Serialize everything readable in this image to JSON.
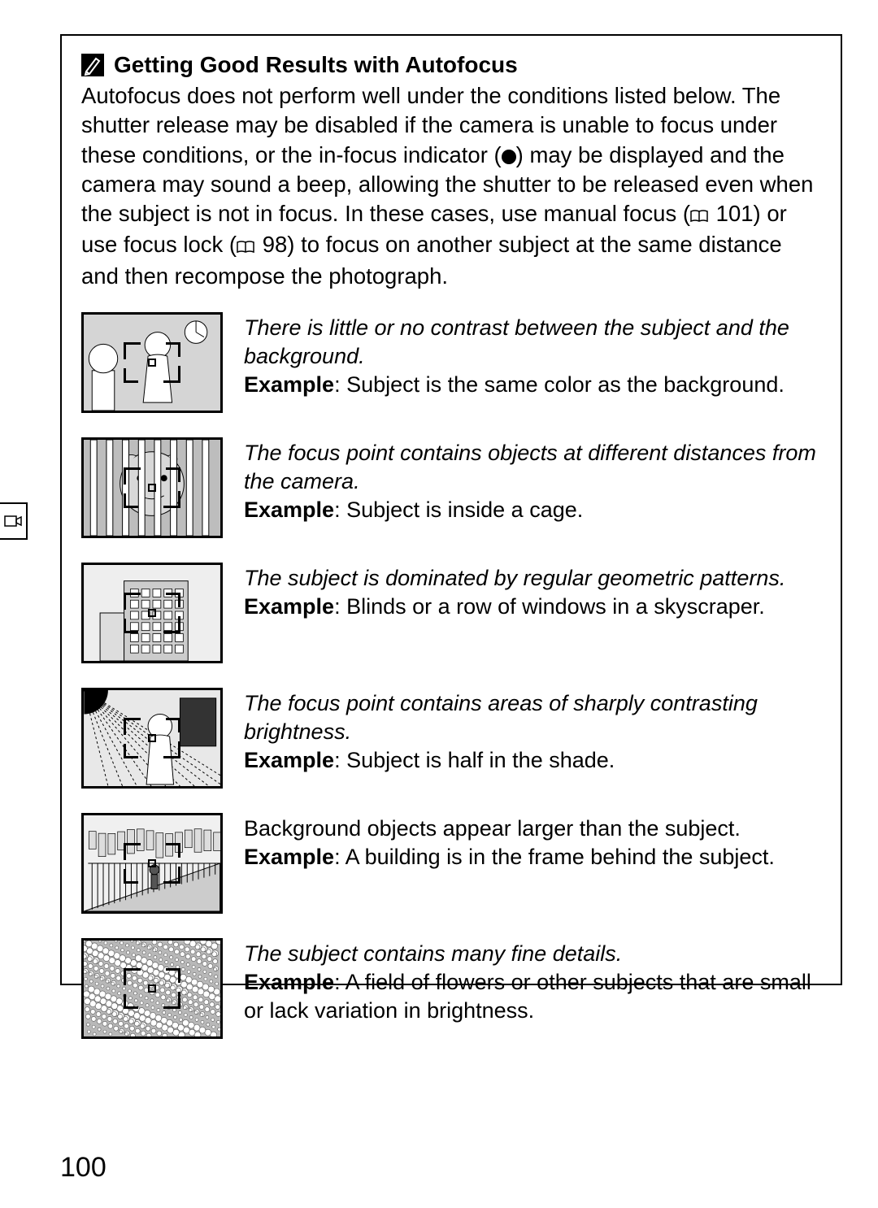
{
  "page_number": "100",
  "heading": {
    "title": "Getting Good Results with Autofocus"
  },
  "intro": {
    "line1": "Autofocus does not perform well under the conditions listed below. The shutter release may be disabled if the camera is unable to focus under these conditions, or the in-focus indicator (",
    "line2": ") may be displayed and the camera may sound a beep, allowing the shutter to be released even when the subject is not in focus.  In these cases, use manual focus (",
    "ref1": " 101) or use focus lock (",
    "ref2": " 98) to focus on another subject at the same distance and then recompose the photograph."
  },
  "items": [
    {
      "condition": "There is little or no contrast between the subject and the background.",
      "example_label": "Example",
      "example_text": ": Subject is the same color as the background.",
      "italic_condition": true,
      "thumb": "contrast"
    },
    {
      "condition": "The focus point contains objects at different distances from the camera.",
      "example_label": "Example",
      "example_text": ": Subject is inside a cage.",
      "italic_condition": true,
      "thumb": "cage"
    },
    {
      "condition": "The subject is dominated by regular geometric patterns.",
      "example_label": "Example",
      "example_text": ": Blinds or a row of windows in a skyscraper.",
      "italic_condition": true,
      "thumb": "building"
    },
    {
      "condition": "The focus point contains areas of sharply contrasting brightness.",
      "example_label": "Example",
      "example_text": ": Subject is half in the shade.",
      "italic_condition": true,
      "thumb": "shade"
    },
    {
      "condition": "Background objects appear larger than the subject.",
      "example_label": "Example",
      "example_text": ": A building is in the frame behind the subject.",
      "italic_condition": false,
      "thumb": "perspective"
    },
    {
      "condition": "The subject contains many fine details.",
      "example_label": "Example",
      "example_text": ": A field of flowers or other subjects that are small or lack variation in brightness.",
      "italic_condition": true,
      "thumb": "flowers"
    }
  ],
  "colors": {
    "border": "#000000",
    "background": "#ffffff",
    "thumb_bg": "#c8c8c8"
  }
}
